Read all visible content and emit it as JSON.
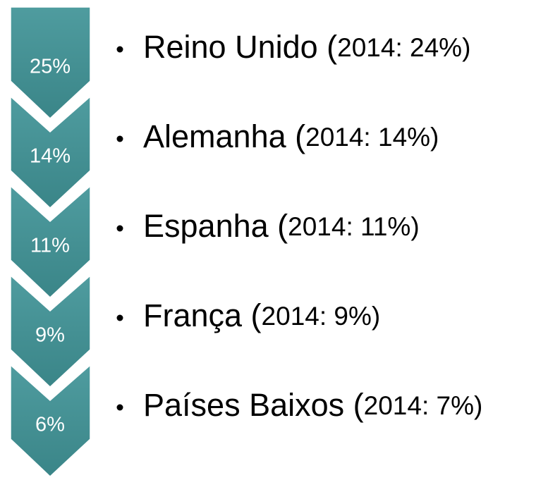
{
  "items": [
    {
      "badge": "25%",
      "name": "Reino Unido (",
      "detail": "2014: 24%)"
    },
    {
      "badge": "14%",
      "name": "Alemanha (",
      "detail": "2014: 14%)"
    },
    {
      "badge": "11%",
      "name": "Espanha (",
      "detail": "2014: 11%)"
    },
    {
      "badge": "9%",
      "name": "França (",
      "detail": "2014: 9%)"
    },
    {
      "badge": "6%",
      "name": "Países Baixos (",
      "detail": "2014: 7%)"
    }
  ]
}
